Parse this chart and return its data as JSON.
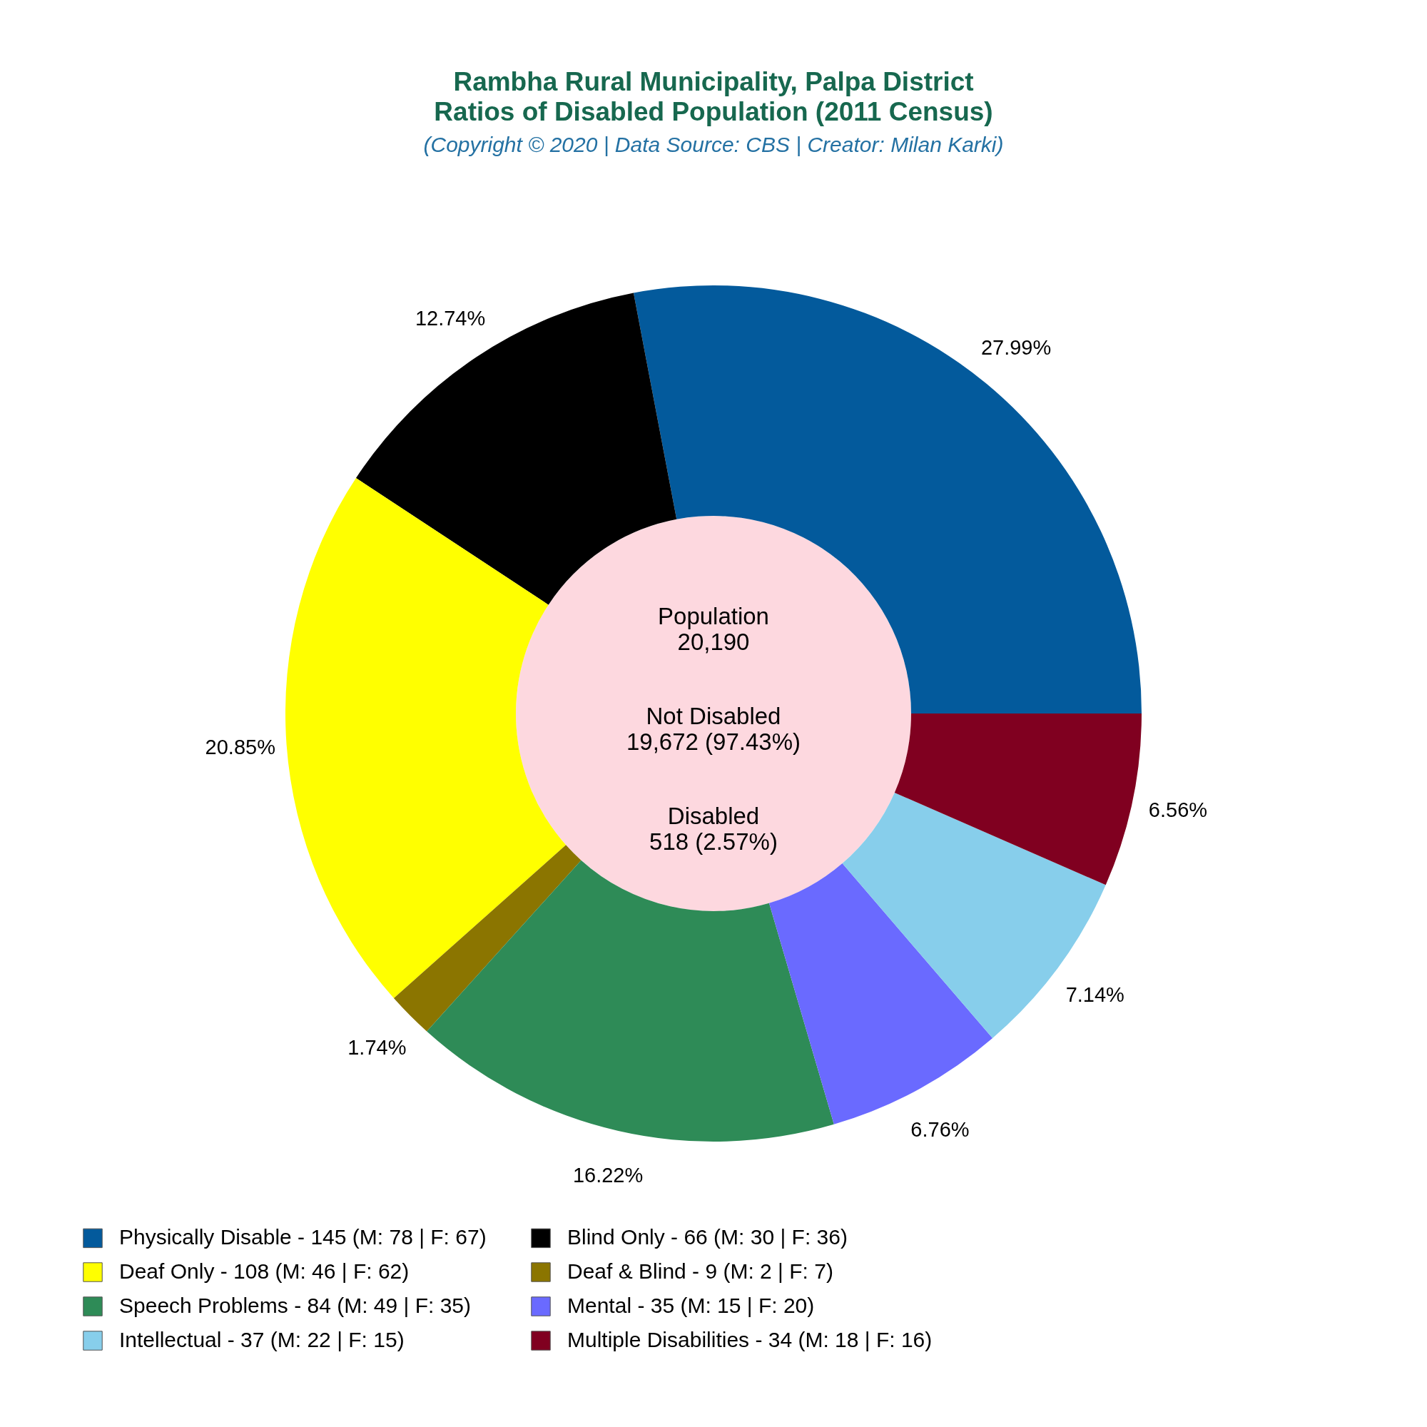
{
  "chart_data": {
    "type": "donut",
    "title": [
      "Rambha Rural Municipality, Palpa District",
      "Ratios of Disabled Population (2011 Census)"
    ],
    "subtitle": "(Copyright © 2020 | Data Source: CBS | Creator: Milan Karki)",
    "categories": [
      "Physically Disable - 145 (M: 78 | F: 67)",
      "Blind Only - 66 (M: 30 | F: 36)",
      "Deaf Only - 108 (M: 46 | F: 62)",
      "Deaf & Blind - 9 (M: 2 | F: 7)",
      "Speech Problems - 84 (M: 49 | F: 35)",
      "Mental - 35 (M: 15 | F: 20)",
      "Intellectual - 37 (M: 22 | F: 15)",
      "Multiple Disabilities - 34 (M: 18 | F: 16)"
    ],
    "values": [
      27.99,
      12.74,
      20.85,
      1.74,
      16.22,
      6.76,
      7.14,
      6.56
    ],
    "colors": [
      "#035a9c",
      "#000000",
      "#ffff00",
      "#8b7500",
      "#2e8b57",
      "#6a6aff",
      "#87ceeb",
      "#800020"
    ],
    "value_labels": [
      "27.99%",
      "12.74%",
      "20.85%",
      "1.74%",
      "16.22%",
      "6.76%",
      "7.14%",
      "6.56%"
    ],
    "annotations": [
      "Population\n20,190",
      "Not Disabled\n19,672 (97.43%)",
      "Disabled\n518 (2.57%)"
    ],
    "legend": "bottom"
  }
}
